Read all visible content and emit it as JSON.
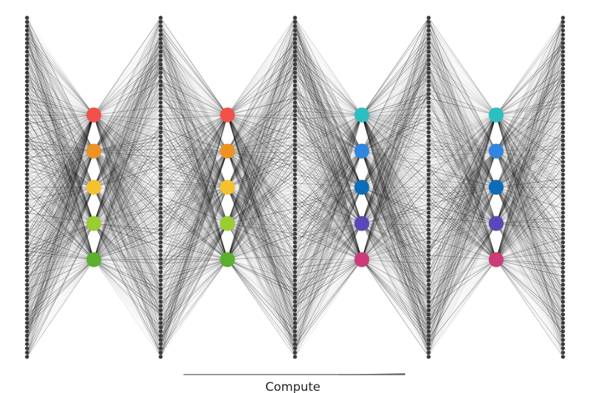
{
  "caption": "Compute"
}
